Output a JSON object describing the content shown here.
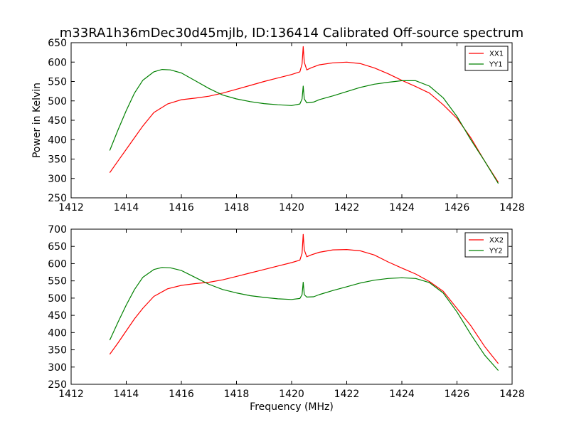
{
  "chart_data": {
    "type": "line",
    "title": "m33RA1h36mDec30d45mjlb, ID:136414 Calibrated Off-source spectrum",
    "xlabel": "Frequency (MHz)",
    "colors": {
      "XX": "#ff0000",
      "YY": "#008000"
    },
    "panels": [
      {
        "id": "top",
        "ylabel": "Power in Kelvin",
        "xlim": [
          1412,
          1428
        ],
        "ylim": [
          250,
          650
        ],
        "xticks": [
          1412,
          1414,
          1416,
          1418,
          1420,
          1422,
          1424,
          1426,
          1428
        ],
        "yticks": [
          250,
          300,
          350,
          400,
          450,
          500,
          550,
          600,
          650
        ],
        "legend_position": "top-right",
        "series": [
          {
            "name": "XX1",
            "color": "#ff0000",
            "x": [
              1413.4,
              1413.7,
              1414.0,
              1414.3,
              1414.6,
              1415.0,
              1415.5,
              1416.0,
              1416.5,
              1417.0,
              1417.5,
              1418.0,
              1418.5,
              1419.0,
              1419.5,
              1420.0,
              1420.3,
              1420.38,
              1420.42,
              1420.46,
              1420.55,
              1420.7,
              1421.0,
              1421.5,
              1422.0,
              1422.5,
              1423.0,
              1423.5,
              1424.0,
              1424.5,
              1425.0,
              1425.5,
              1426.0,
              1426.5,
              1427.0,
              1427.5
            ],
            "y": [
              315,
              345,
              375,
              405,
              435,
              470,
              492,
              503,
              507,
              512,
              520,
              530,
              540,
              550,
              559,
              568,
              575,
              595,
              640,
              600,
              580,
              585,
              593,
              598,
              600,
              596,
              585,
              570,
              553,
              537,
              520,
              490,
              455,
              405,
              345,
              290
            ]
          },
          {
            "name": "YY1",
            "color": "#008000",
            "x": [
              1413.4,
              1413.7,
              1414.0,
              1414.3,
              1414.6,
              1415.0,
              1415.3,
              1415.6,
              1416.0,
              1416.5,
              1417.0,
              1417.5,
              1418.0,
              1418.5,
              1419.0,
              1419.5,
              1420.0,
              1420.3,
              1420.38,
              1420.42,
              1420.46,
              1420.55,
              1420.8,
              1421.0,
              1421.5,
              1422.0,
              1422.5,
              1423.0,
              1423.5,
              1424.0,
              1424.5,
              1425.0,
              1425.5,
              1426.0,
              1426.5,
              1427.0,
              1427.5
            ],
            "y": [
              372,
              425,
              475,
              520,
              553,
              575,
              581,
              580,
              572,
              552,
              532,
              515,
              505,
              498,
              493,
              490,
              488,
              492,
              505,
              538,
              505,
              495,
              497,
              503,
              513,
              524,
              535,
              543,
              548,
              552,
              552,
              538,
              508,
              460,
              400,
              345,
              287
            ]
          }
        ]
      },
      {
        "id": "bottom",
        "ylabel": "",
        "xlim": [
          1412,
          1428
        ],
        "ylim": [
          250,
          700
        ],
        "xticks": [
          1412,
          1414,
          1416,
          1418,
          1420,
          1422,
          1424,
          1426,
          1428
        ],
        "yticks": [
          250,
          300,
          350,
          400,
          450,
          500,
          550,
          600,
          650,
          700
        ],
        "legend_position": "top-right",
        "series": [
          {
            "name": "XX2",
            "color": "#ff0000",
            "x": [
              1413.4,
              1413.7,
              1414.0,
              1414.3,
              1414.6,
              1415.0,
              1415.5,
              1416.0,
              1416.5,
              1417.0,
              1417.5,
              1418.0,
              1418.5,
              1419.0,
              1419.5,
              1420.0,
              1420.3,
              1420.38,
              1420.42,
              1420.46,
              1420.55,
              1420.7,
              1421.0,
              1421.5,
              1422.0,
              1422.5,
              1423.0,
              1423.5,
              1424.0,
              1424.5,
              1425.0,
              1425.5,
              1426.0,
              1426.5,
              1427.0,
              1427.5
            ],
            "y": [
              337,
              370,
              405,
              440,
              470,
              505,
              527,
              537,
              542,
              546,
              553,
              563,
              573,
              583,
              593,
              603,
              610,
              630,
              685,
              640,
              620,
              625,
              633,
              640,
              641,
              637,
              625,
              605,
              587,
              570,
              548,
              520,
              470,
              420,
              360,
              310
            ]
          },
          {
            "name": "YY2",
            "color": "#008000",
            "x": [
              1413.4,
              1413.7,
              1414.0,
              1414.3,
              1414.6,
              1415.0,
              1415.3,
              1415.6,
              1416.0,
              1416.5,
              1417.0,
              1417.5,
              1418.0,
              1418.5,
              1419.0,
              1419.5,
              1420.0,
              1420.3,
              1420.38,
              1420.42,
              1420.46,
              1420.55,
              1420.8,
              1421.0,
              1421.5,
              1422.0,
              1422.5,
              1423.0,
              1423.5,
              1424.0,
              1424.5,
              1425.0,
              1425.5,
              1426.0,
              1426.5,
              1427.0,
              1427.5
            ],
            "y": [
              378,
              430,
              480,
              525,
              560,
              583,
              589,
              588,
              580,
              560,
              540,
              525,
              515,
              507,
              502,
              498,
              496,
              499,
              510,
              546,
              510,
              503,
              504,
              510,
              522,
              533,
              544,
              552,
              557,
              559,
              557,
              545,
              515,
              460,
              395,
              335,
              290
            ]
          }
        ]
      }
    ]
  }
}
